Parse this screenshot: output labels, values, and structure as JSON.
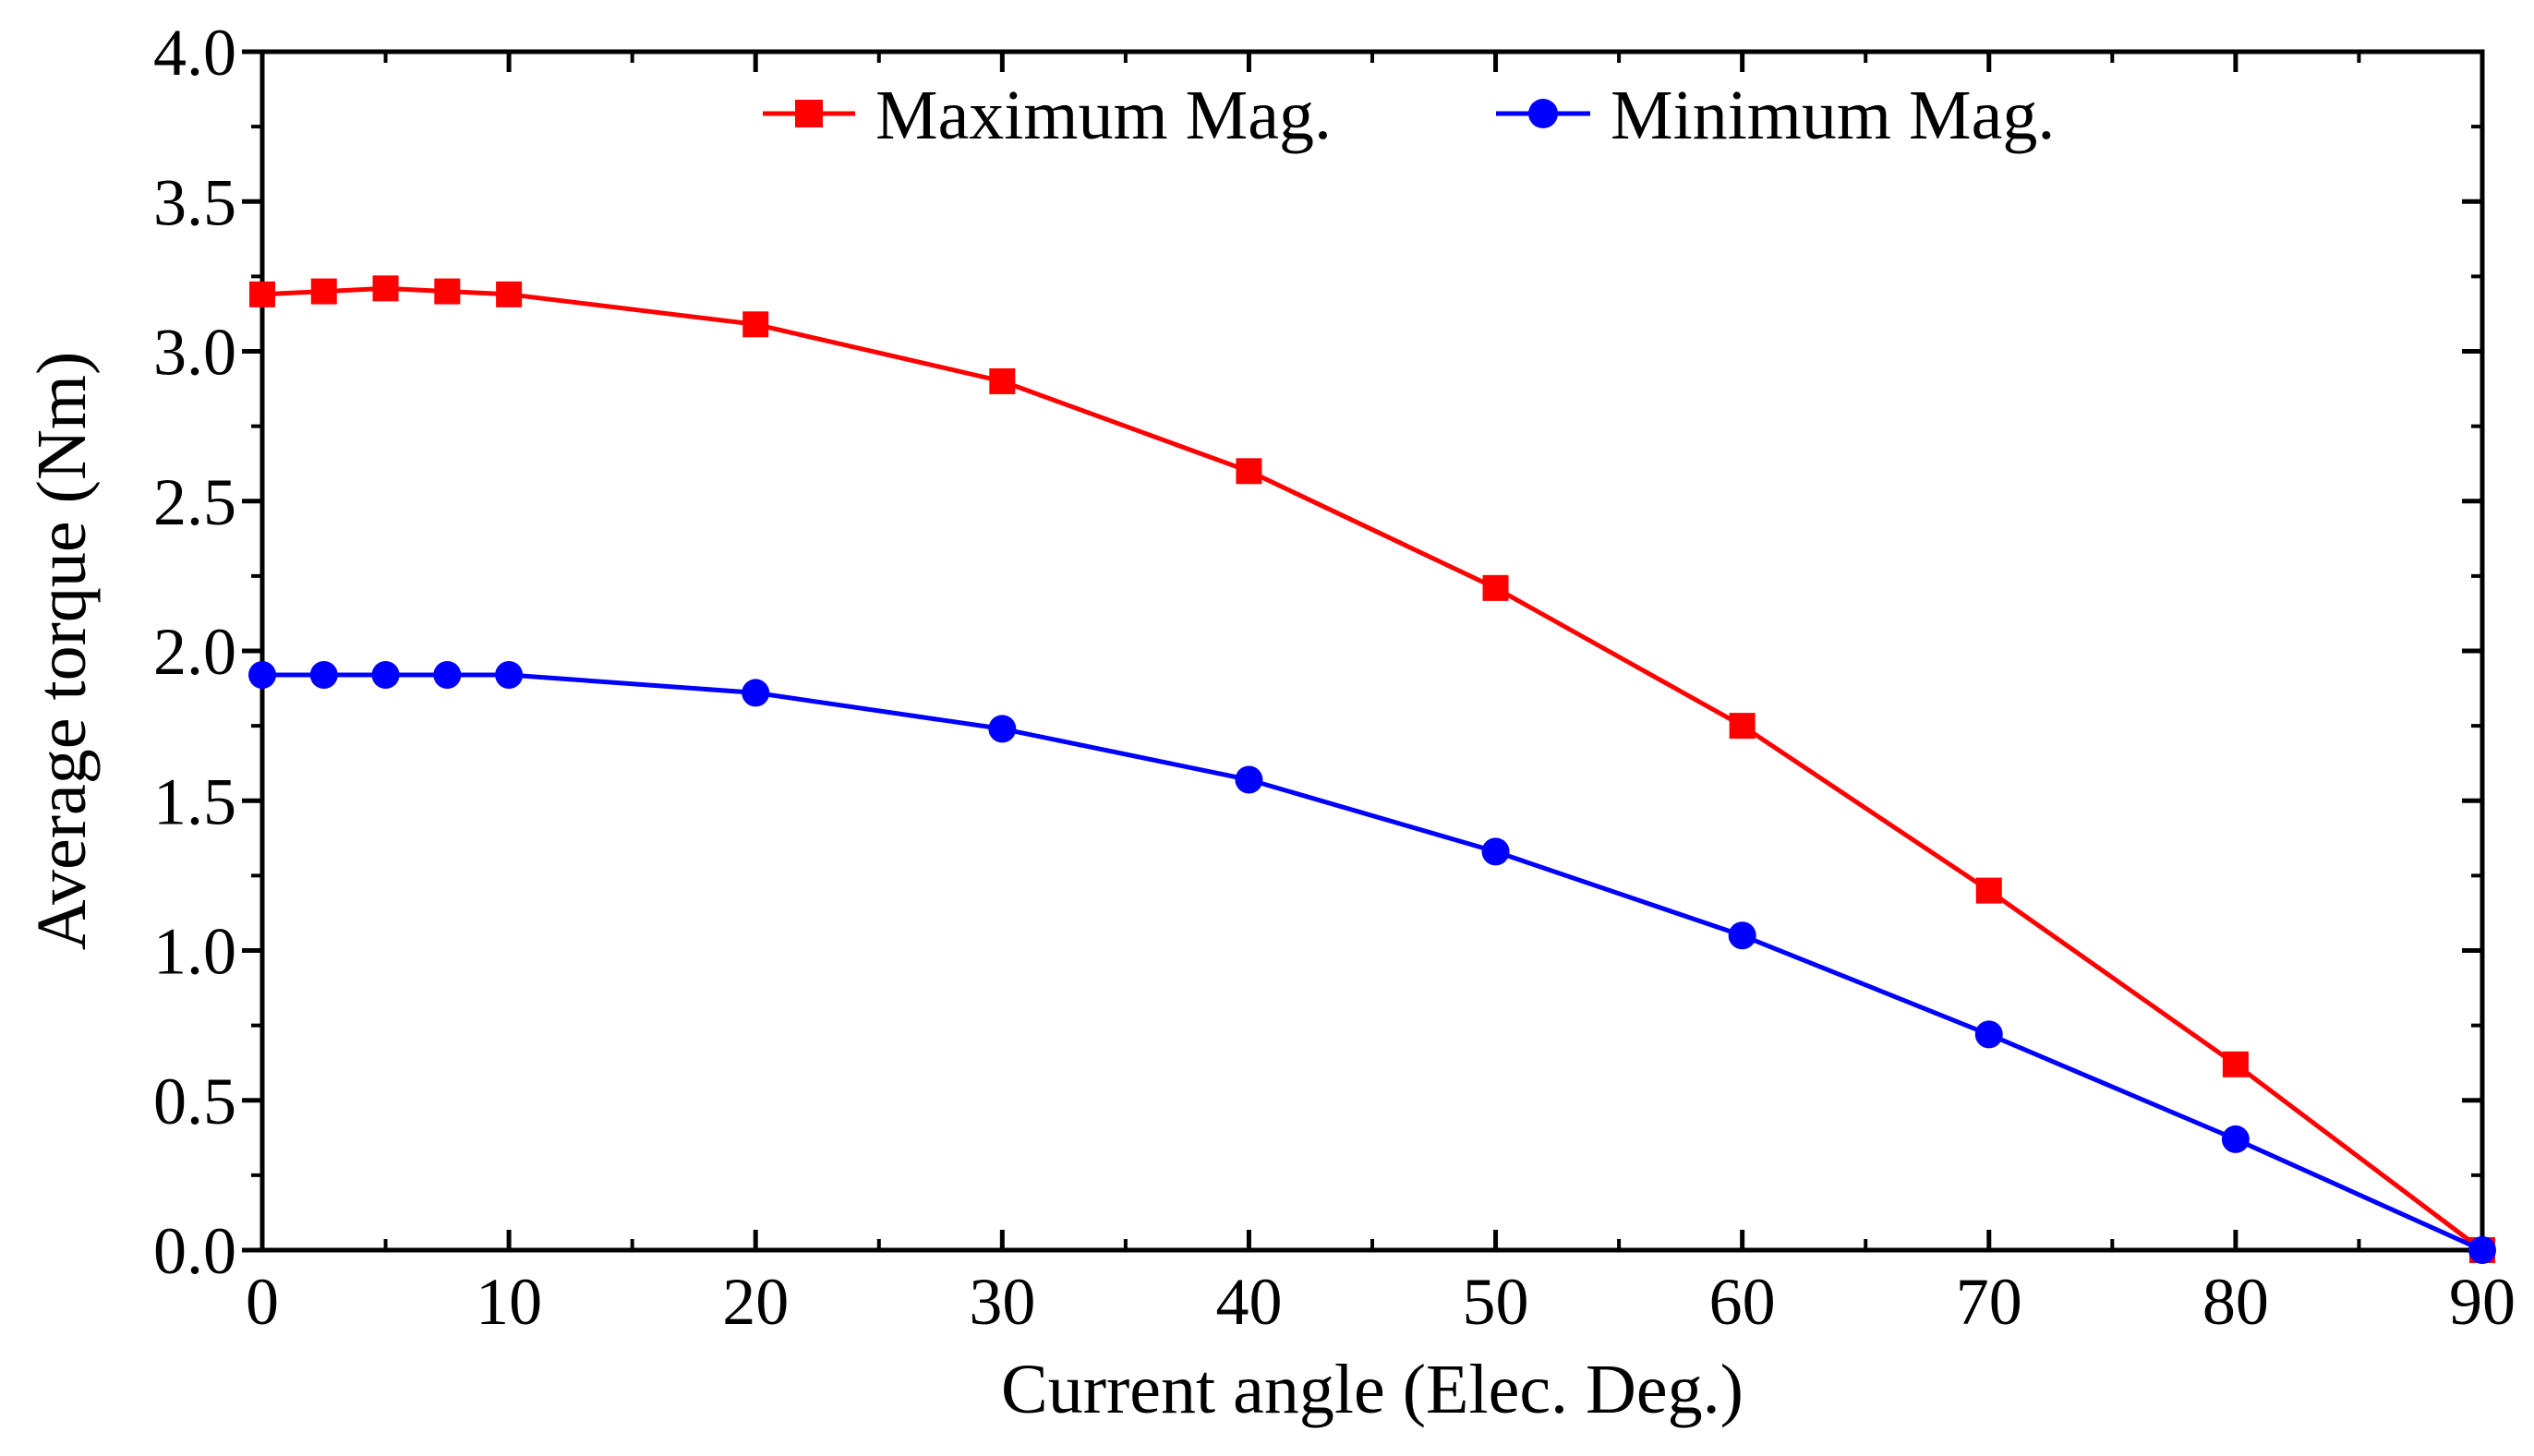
{
  "chart_data": {
    "type": "line",
    "xlabel": "Current angle (Elec. Deg.)",
    "ylabel": "Average torque (Nm)",
    "xlim": [
      0,
      90
    ],
    "ylim": [
      0,
      4.0
    ],
    "x_ticks": [
      0,
      10,
      20,
      30,
      40,
      50,
      60,
      70,
      80,
      90
    ],
    "x_tick_labels": [
      "0",
      "10",
      "20",
      "30",
      "40",
      "50",
      "60",
      "70",
      "80",
      "90"
    ],
    "y_ticks": [
      0,
      0.5,
      1.0,
      1.5,
      2.0,
      2.5,
      3.0,
      3.5,
      4.0
    ],
    "y_tick_labels": [
      "0.0",
      "0.5",
      "1.0",
      "1.5",
      "2.0",
      "2.5",
      "3.0",
      "3.5",
      "4.0"
    ],
    "grid": false,
    "legend_position": "top",
    "series": [
      {
        "name": "Maximum Mag.",
        "color": "#ff0000",
        "marker": "square",
        "x": [
          0,
          2.5,
          5,
          7.5,
          10,
          20,
          30,
          40,
          50,
          60,
          70,
          80,
          90
        ],
        "values": [
          3.19,
          3.2,
          3.21,
          3.2,
          3.19,
          3.09,
          2.9,
          2.6,
          2.21,
          1.75,
          1.2,
          0.62,
          0.0
        ]
      },
      {
        "name": "Minimum Mag.",
        "color": "#0000ff",
        "marker": "circle",
        "x": [
          0,
          2.5,
          5,
          7.5,
          10,
          20,
          30,
          40,
          50,
          60,
          70,
          80,
          90
        ],
        "values": [
          1.92,
          1.92,
          1.92,
          1.92,
          1.92,
          1.86,
          1.74,
          1.57,
          1.33,
          1.05,
          0.72,
          0.37,
          0.0
        ]
      }
    ]
  }
}
